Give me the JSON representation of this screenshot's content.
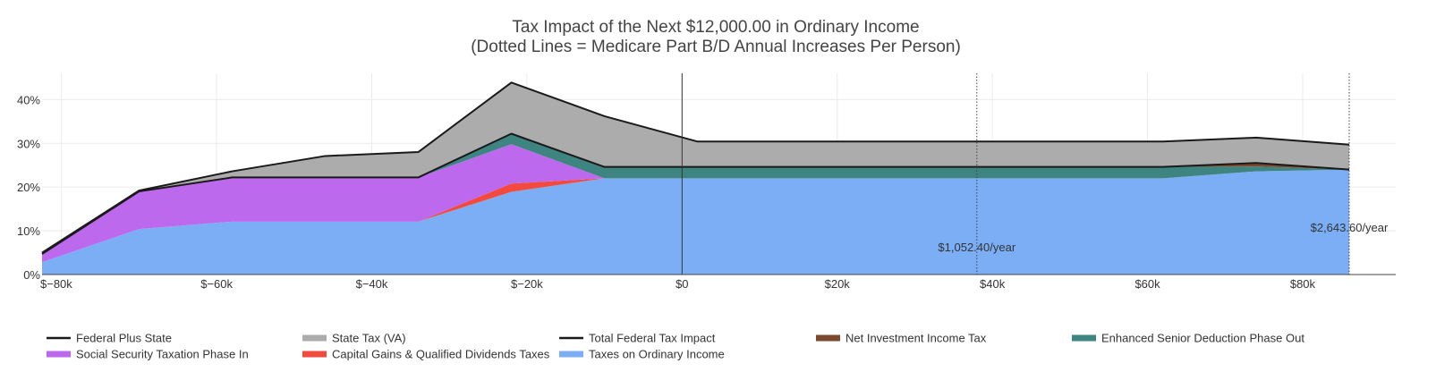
{
  "chart_data": {
    "type": "area",
    "title": [
      "Tax Impact of the Next $12,000.00 in Ordinary Income",
      "(Dotted Lines = Medicare Part B/D Annual Increases Per Person)"
    ],
    "xlabel": "",
    "ylabel": "",
    "xlim": [
      -82500,
      92000
    ],
    "ylim": [
      0,
      46
    ],
    "grid": true,
    "x_ticks": [
      {
        "value": -80000,
        "label": "$−80k"
      },
      {
        "value": -60000,
        "label": "$−60k"
      },
      {
        "value": -40000,
        "label": "$−40k"
      },
      {
        "value": -20000,
        "label": "$−20k"
      },
      {
        "value": 0,
        "label": "$0"
      },
      {
        "value": 20000,
        "label": "$20k"
      },
      {
        "value": 40000,
        "label": "$40k"
      },
      {
        "value": 60000,
        "label": "$60k"
      },
      {
        "value": 80000,
        "label": "$80k"
      }
    ],
    "y_ticks": [
      {
        "value": 0,
        "label": "0%"
      },
      {
        "value": 10,
        "label": "10%"
      },
      {
        "value": 20,
        "label": "20%"
      },
      {
        "value": 30,
        "label": "30%"
      },
      {
        "value": 40,
        "label": "40%"
      }
    ],
    "x": [
      -82500,
      -70000,
      -58000,
      -46000,
      -34000,
      -22000,
      -10000,
      2000,
      14000,
      26000,
      38000,
      50000,
      62000,
      74000,
      86000
    ],
    "stacked_series": [
      {
        "name": "Taxes on Ordinary Income",
        "color": "#7baef5",
        "values": [
          2.8,
          10.4,
          12.1,
          12.1,
          12.1,
          18.9,
          22.0,
          22.0,
          22.0,
          22.0,
          22.0,
          22.0,
          22.0,
          23.6,
          24.0
        ]
      },
      {
        "name": "Capital Gains & Qualified Dividends Taxes",
        "color": "#f24a3e",
        "values": [
          0,
          0,
          0,
          0,
          0,
          1.9,
          0,
          0,
          0,
          0,
          0,
          0,
          0,
          0,
          0
        ]
      },
      {
        "name": "Social Security Taxation Phase In",
        "color": "#bd69ee",
        "values": [
          1.9,
          8.6,
          10.1,
          10.1,
          10.1,
          9.0,
          0,
          0,
          0,
          0,
          0,
          0,
          0,
          0,
          0
        ]
      },
      {
        "name": "Enhanced Senior Deduction Phase Out",
        "color": "#3e8481",
        "values": [
          0,
          0,
          0,
          0,
          0,
          2.4,
          2.6,
          2.6,
          2.6,
          2.6,
          2.6,
          2.6,
          2.6,
          1.1,
          0
        ]
      },
      {
        "name": "Net Investment Income Tax",
        "color": "#7b4a2e",
        "values": [
          0,
          0,
          0,
          0,
          0,
          0,
          0,
          0,
          0,
          0,
          0,
          0,
          0,
          0.8,
          0
        ]
      },
      {
        "name": "State Tax (VA)",
        "color": "#acacac",
        "values": [
          0.3,
          0.2,
          1.4,
          4.9,
          5.8,
          11.7,
          11.6,
          5.8,
          5.8,
          5.8,
          5.8,
          5.8,
          5.8,
          5.8,
          5.7
        ]
      }
    ],
    "line_series": [
      {
        "name": "Total Federal Tax Impact",
        "color": "#1a1a1a",
        "values": [
          4.7,
          19.0,
          22.2,
          22.2,
          22.2,
          32.2,
          24.6,
          24.6,
          24.6,
          24.6,
          24.6,
          24.6,
          24.6,
          25.5,
          24.0
        ]
      },
      {
        "name": "Federal Plus State",
        "color": "#1a1a1a",
        "values": [
          5.0,
          19.2,
          23.6,
          27.1,
          28.0,
          43.9,
          36.2,
          30.4,
          30.4,
          30.4,
          30.4,
          30.4,
          30.4,
          31.3,
          29.7
        ]
      }
    ],
    "zero_line": {
      "x": 0
    },
    "medicare_lines": [
      {
        "x": 38000,
        "label": "$1,052.40/year"
      },
      {
        "x": 86000,
        "label": "$2,643.60/year"
      }
    ],
    "legend": {
      "placement": "bottom",
      "items": [
        {
          "name": "Federal Plus State",
          "color": "#1a1a1a",
          "kind": "line"
        },
        {
          "name": "State Tax (VA)",
          "color": "#acacac",
          "kind": "area"
        },
        {
          "name": "Total Federal Tax Impact",
          "color": "#1a1a1a",
          "kind": "line"
        },
        {
          "name": "Net Investment Income Tax",
          "color": "#7b4a2e",
          "kind": "area"
        },
        {
          "name": "Enhanced Senior Deduction Phase Out",
          "color": "#3e8481",
          "kind": "area"
        },
        {
          "name": "Social Security Taxation Phase In",
          "color": "#bd69ee",
          "kind": "area"
        },
        {
          "name": "Capital Gains & Qualified Dividends Taxes",
          "color": "#f24a3e",
          "kind": "area"
        },
        {
          "name": "Taxes on Ordinary Income",
          "color": "#7baef5",
          "kind": "area"
        }
      ]
    }
  }
}
